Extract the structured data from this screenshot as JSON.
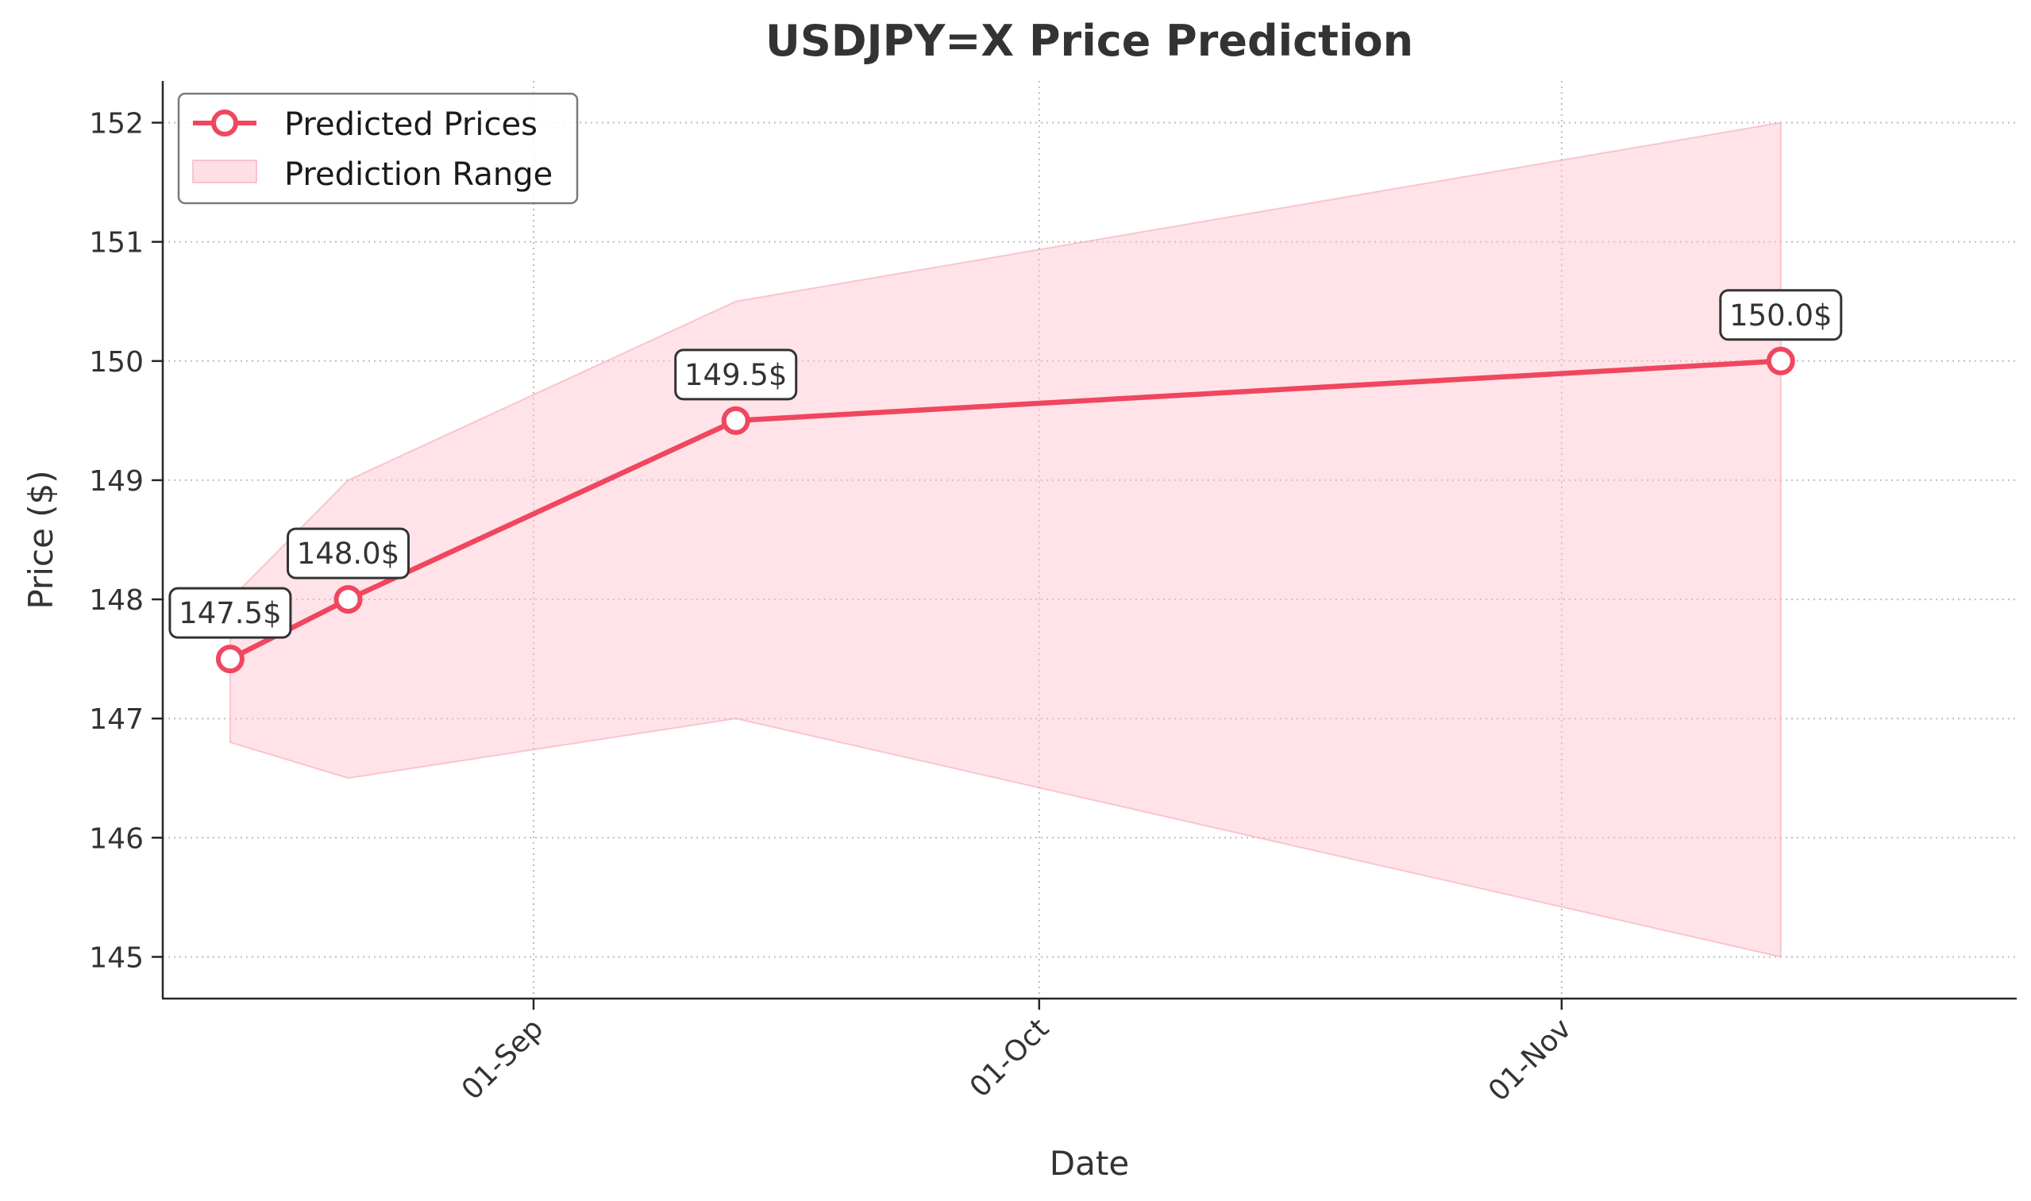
{
  "chart_data": {
    "type": "line",
    "title": "USDJPY=X Price Prediction",
    "xlabel": "Date",
    "ylabel": "Price ($)",
    "x_ticks": [
      {
        "date": "2024-09-01",
        "label": "01-Sep"
      },
      {
        "date": "2024-10-01",
        "label": "01-Oct"
      },
      {
        "date": "2024-11-01",
        "label": "01-Nov"
      }
    ],
    "xlim": [
      "2024-08-10",
      "2024-11-28"
    ],
    "ylim": [
      144.65,
      152.35
    ],
    "y_ticks": [
      145,
      146,
      147,
      148,
      149,
      150,
      151,
      152
    ],
    "grid": true,
    "legend_position": "top-left",
    "series": [
      {
        "name": "Predicted Prices",
        "color": "#f0465f",
        "points": [
          {
            "date": "2024-08-14",
            "value": 147.5,
            "label": "147.5$"
          },
          {
            "date": "2024-08-21",
            "value": 148.0,
            "label": "148.0$"
          },
          {
            "date": "2024-09-13",
            "value": 149.5,
            "label": "149.5$"
          },
          {
            "date": "2024-11-14",
            "value": 150.0,
            "label": "150.0$"
          }
        ]
      }
    ],
    "range": {
      "name": "Prediction Range",
      "color": "#ffc0cb",
      "upper": [
        {
          "date": "2024-08-14",
          "value": 148.0
        },
        {
          "date": "2024-08-21",
          "value": 149.0
        },
        {
          "date": "2024-09-13",
          "value": 150.5
        },
        {
          "date": "2024-11-14",
          "value": 152.0
        }
      ],
      "lower": [
        {
          "date": "2024-08-14",
          "value": 146.8
        },
        {
          "date": "2024-08-21",
          "value": 146.5
        },
        {
          "date": "2024-09-13",
          "value": 147.0
        },
        {
          "date": "2024-11-14",
          "value": 145.0
        }
      ]
    }
  }
}
